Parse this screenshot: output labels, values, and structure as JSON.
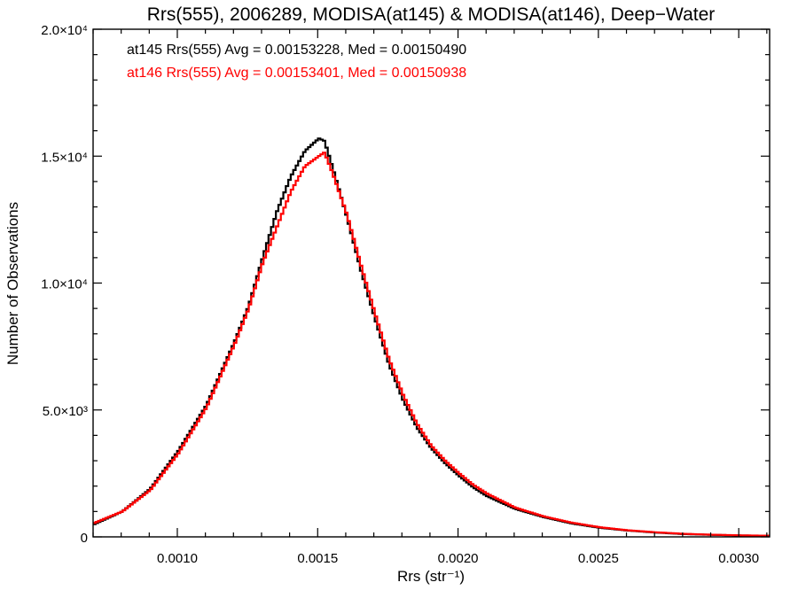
{
  "chart_data": {
    "type": "line",
    "step": true,
    "title": "Rrs(555), 2006289, MODISA(at145) & MODISA(at146), Deep−Water",
    "xlabel": "Rrs (str⁻¹)",
    "ylabel": "Number of Observations",
    "xlim": [
      0.0007,
      0.00311
    ],
    "ylim": [
      0,
      20000
    ],
    "x_ticks": [
      {
        "value": 0.001,
        "label": "0.0010"
      },
      {
        "value": 0.0015,
        "label": "0.0015"
      },
      {
        "value": 0.002,
        "label": "0.0020"
      },
      {
        "value": 0.0025,
        "label": "0.0025"
      },
      {
        "value": 0.003,
        "label": "0.0030"
      }
    ],
    "y_ticks": [
      {
        "value": 0,
        "label": "0"
      },
      {
        "value": 5000,
        "label": "5.0×10³"
      },
      {
        "value": 10000,
        "label": "1.0×10⁴"
      },
      {
        "value": 15000,
        "label": "1.5×10⁴"
      },
      {
        "value": 20000,
        "label": "2.0×10⁴"
      }
    ],
    "grid": false,
    "legend": "top-left annotations",
    "annotations": [
      {
        "text": "at145 Rrs(555) Avg = 0.00153228, Med = 0.00150490",
        "color": "#000000"
      },
      {
        "text": "at146 Rrs(555) Avg = 0.00153401, Med = 0.00150938",
        "color": "#ff0000"
      }
    ],
    "series": [
      {
        "color": "#000000",
        "x": [
          0.0007,
          0.0008,
          0.0009,
          0.001,
          0.0011,
          0.0012,
          0.00125,
          0.0013,
          0.00135,
          0.0014,
          0.00145,
          0.0015,
          0.00152,
          0.00155,
          0.0016,
          0.00165,
          0.0017,
          0.00175,
          0.0018,
          0.00185,
          0.0019,
          0.00195,
          0.002,
          0.00205,
          0.0021,
          0.0022,
          0.0023,
          0.0024,
          0.0025,
          0.0026,
          0.0027,
          0.0028,
          0.0029,
          0.003,
          0.00311
        ],
        "values": [
          500,
          1000,
          1900,
          3400,
          5200,
          7700,
          9100,
          11000,
          12800,
          14200,
          15200,
          15700,
          15600,
          14500,
          12600,
          10500,
          8600,
          6800,
          5400,
          4300,
          3500,
          2900,
          2400,
          1950,
          1600,
          1100,
          780,
          530,
          360,
          250,
          170,
          110,
          80,
          55,
          40
        ]
      },
      {
        "color": "#ff0000",
        "x": [
          0.0007,
          0.0008,
          0.0009,
          0.001,
          0.0011,
          0.0012,
          0.00125,
          0.0013,
          0.00135,
          0.0014,
          0.00145,
          0.0015,
          0.00152,
          0.00155,
          0.0016,
          0.00165,
          0.0017,
          0.00175,
          0.0018,
          0.00185,
          0.0019,
          0.00195,
          0.002,
          0.00205,
          0.0021,
          0.0022,
          0.0023,
          0.0024,
          0.0025,
          0.0026,
          0.0027,
          0.0028,
          0.0029,
          0.003,
          0.00311
        ],
        "values": [
          550,
          1000,
          1850,
          3300,
          5100,
          7600,
          9000,
          10800,
          12200,
          13600,
          14600,
          15000,
          15150,
          14300,
          12700,
          10700,
          8800,
          7000,
          5600,
          4450,
          3600,
          3000,
          2500,
          2050,
          1700,
          1150,
          810,
          560,
          380,
          260,
          180,
          120,
          85,
          60,
          45
        ]
      }
    ]
  }
}
